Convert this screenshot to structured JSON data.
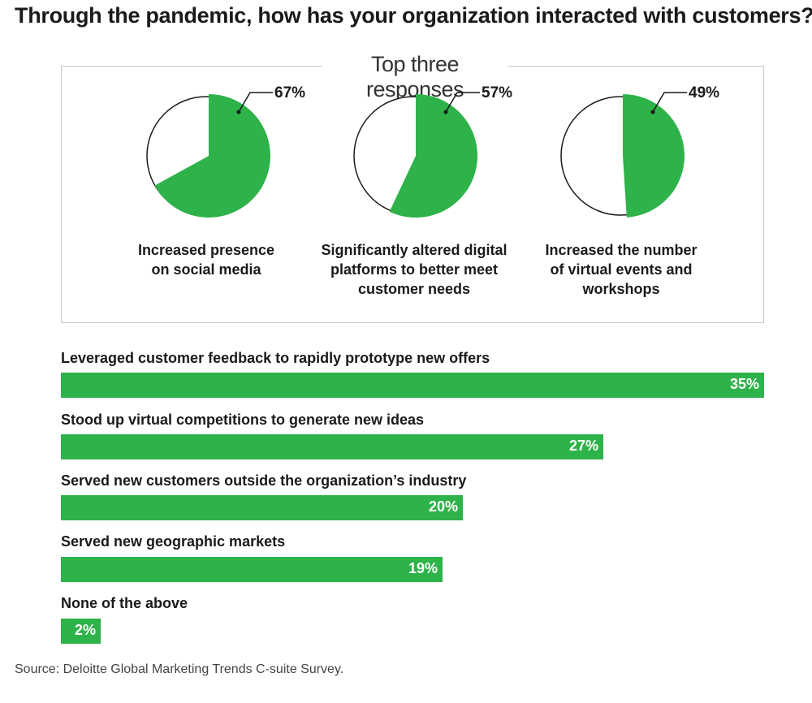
{
  "title": "Through the pandemic, how has your organization interacted with customers?",
  "panel_title": "Top three responses",
  "source": "Source: Deloitte Global Marketing Trends C-suite Survey.",
  "colors": {
    "accent": "#2eb24a",
    "outline": "#1a1a1a",
    "panel_border": "#c8c8c8"
  },
  "chart_data": [
    {
      "type": "pie",
      "title": "Top three responses",
      "slices": [
        {
          "label": "Increased presence on social media",
          "value": 67,
          "display": "67%"
        },
        {
          "label": "Significantly altered digital platforms to better meet customer needs",
          "value": 57,
          "display": "57%"
        },
        {
          "label": "Increased the number of virtual events and workshops",
          "value": 49,
          "display": "49%"
        }
      ]
    },
    {
      "type": "bar",
      "orientation": "horizontal",
      "categories": [
        "Leveraged customer feedback to rapidly prototype new offers",
        "Stood up virtual competitions to generate new ideas",
        "Served new customers outside the organization’s industry",
        "Served new geographic markets",
        "None of the above"
      ],
      "values": [
        35,
        27,
        20,
        19,
        2
      ],
      "labels": [
        "35%",
        "27%",
        "20%",
        "19%",
        "2%"
      ],
      "xlim": [
        0,
        35
      ]
    }
  ]
}
